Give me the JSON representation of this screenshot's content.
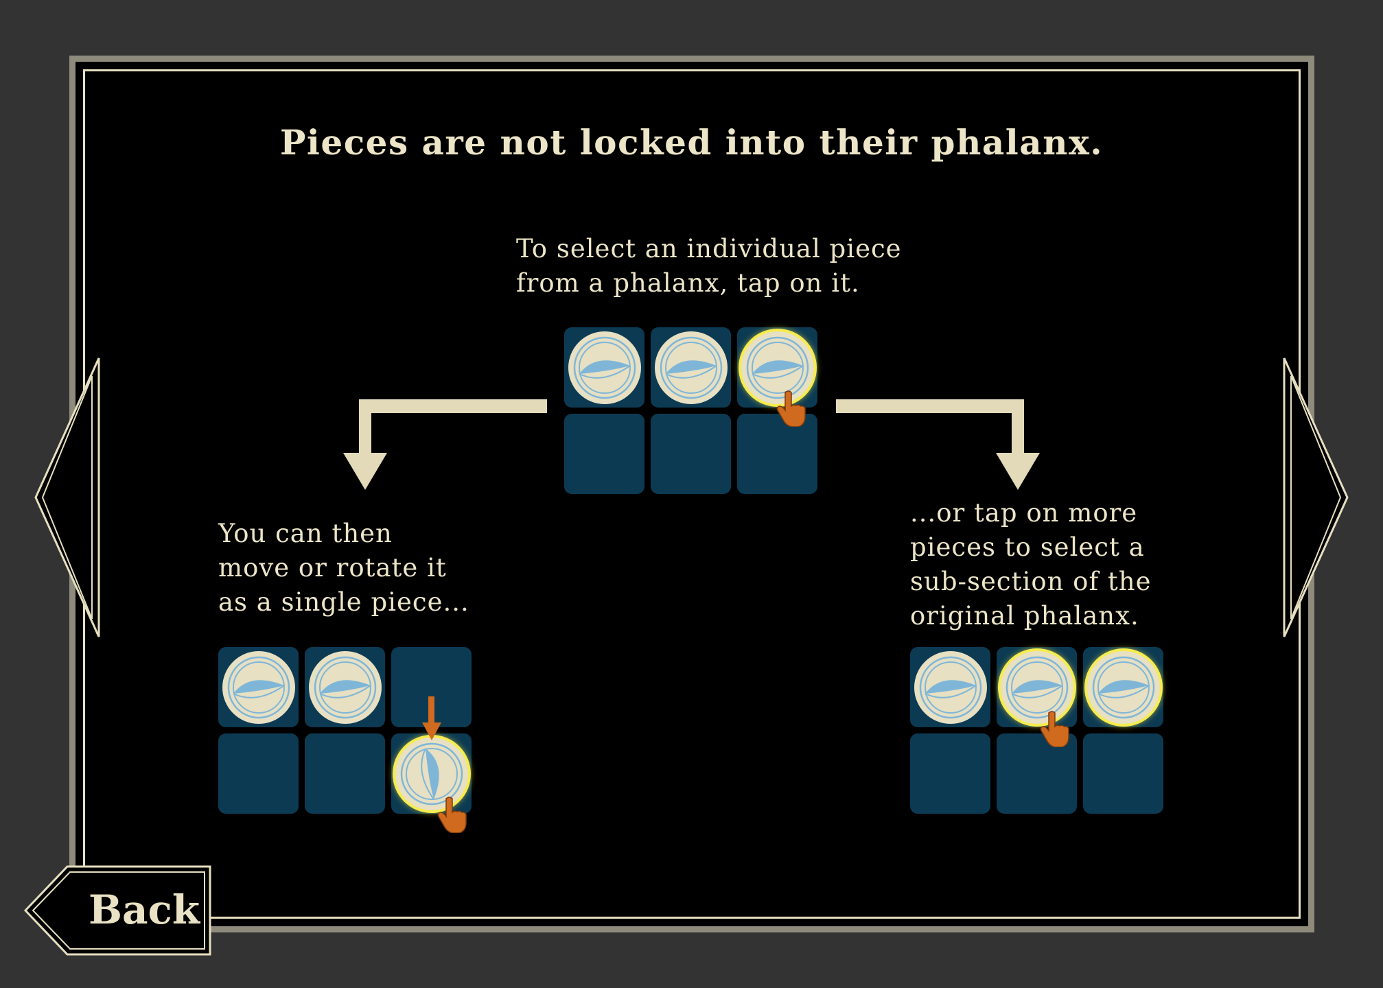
{
  "title": "Pieces are not locked into their phalanx.",
  "captions": {
    "top": "To select an individual piece\nfrom a phalanx, tap on it.",
    "left": "You can then\nmove or rotate it\nas a single piece...",
    "right": "...or tap on more\npieces to select a\nsub-section of the\noriginal phalanx."
  },
  "boards": {
    "top": {
      "rows": [
        [
          "piece",
          "piece",
          "piece-selected"
        ],
        [
          "empty",
          "empty",
          "empty"
        ]
      ]
    },
    "left": {
      "rows": [
        [
          "piece",
          "piece",
          "empty"
        ],
        [
          "empty",
          "empty",
          "piece-selected-rotated"
        ]
      ]
    },
    "right": {
      "rows": [
        [
          "piece",
          "piece-selected",
          "piece-selected"
        ],
        [
          "empty",
          "empty",
          "empty"
        ]
      ]
    }
  },
  "colors": {
    "background": "#333333",
    "panel": "#000000",
    "frame": "#8e8b7c",
    "text": "#ece5c8",
    "tile": "#0c3a53",
    "piece": "#e7e0c3",
    "piece_emblem": "#7fb6d8",
    "selection_glow": "#f6ec4e",
    "hand_pointer": "#d06a1e",
    "arrow": "#e2dab8"
  },
  "icons": {
    "tap": "tap-hand-icon",
    "piece": "spear-shield-emblem-icon",
    "prev": "chevron-left-icon",
    "next": "chevron-right-icon"
  },
  "back_label": "Back"
}
